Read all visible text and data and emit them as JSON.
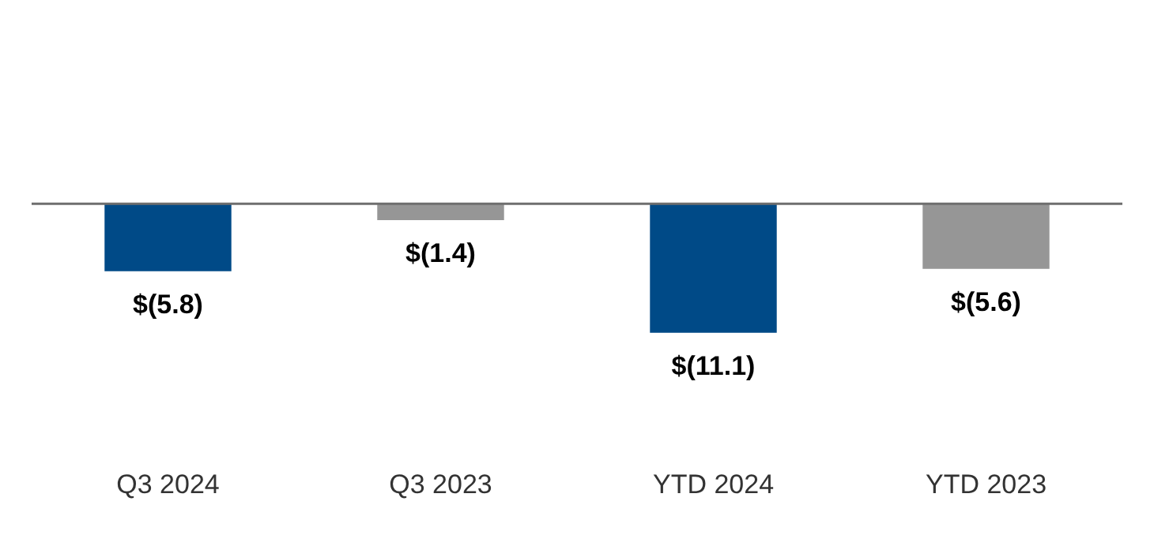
{
  "chart_data": {
    "type": "bar",
    "categories": [
      "Q3 2024",
      "Q3 2023",
      "YTD 2024",
      "YTD 2023"
    ],
    "values": [
      -5.8,
      -1.4,
      -11.1,
      -5.6
    ],
    "colors": [
      "#004a87",
      "#969696",
      "#004a87",
      "#969696"
    ],
    "value_labels": [
      "$(5.8)",
      "$(1.4)",
      "$(11.1)",
      "$(5.6)"
    ],
    "grid": false,
    "legend": false
  }
}
